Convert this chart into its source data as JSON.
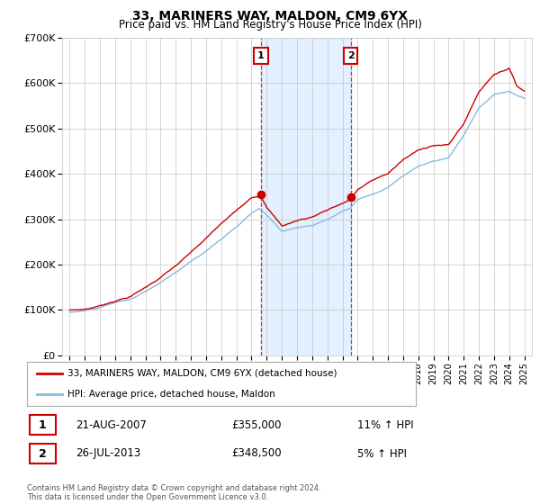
{
  "title": "33, MARINERS WAY, MALDON, CM9 6YX",
  "subtitle": "Price paid vs. HM Land Registry's House Price Index (HPI)",
  "ylim": [
    0,
    700000
  ],
  "yticks": [
    0,
    100000,
    200000,
    300000,
    400000,
    500000,
    600000,
    700000
  ],
  "ytick_labels": [
    "£0",
    "£100K",
    "£200K",
    "£300K",
    "£400K",
    "£500K",
    "£600K",
    "£700K"
  ],
  "legend_line1": "33, MARINERS WAY, MALDON, CM9 6YX (detached house)",
  "legend_line2": "HPI: Average price, detached house, Maldon",
  "line1_color": "#cc0000",
  "line2_color": "#88bbdd",
  "annotation1_label": "1",
  "annotation1_date": "21-AUG-2007",
  "annotation1_price": "£355,000",
  "annotation1_hpi": "11% ↑ HPI",
  "annotation2_label": "2",
  "annotation2_date": "26-JUL-2013",
  "annotation2_price": "£348,500",
  "annotation2_hpi": "5% ↑ HPI",
  "footer": "Contains HM Land Registry data © Crown copyright and database right 2024.\nThis data is licensed under the Open Government Licence v3.0.",
  "grid_color": "#cccccc",
  "background_color": "#ffffff",
  "shade_color": "#ddeeff",
  "ann1_x": 2007.62,
  "ann1_y": 355000,
  "ann2_x": 2013.54,
  "ann2_y": 348500,
  "xlim_left": 1994.5,
  "xlim_right": 2025.5
}
